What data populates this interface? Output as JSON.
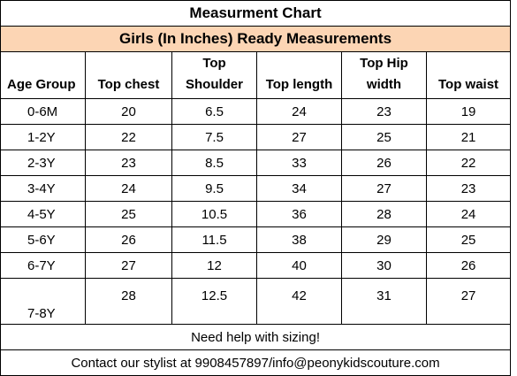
{
  "title": "Measurment Chart",
  "subtitle": "Girls (In Inches) Ready Measurements",
  "headers": [
    [
      "",
      "Age Group"
    ],
    [
      "",
      "Top chest"
    ],
    [
      "Top",
      "Shoulder"
    ],
    [
      "",
      "Top length"
    ],
    [
      "Top Hip",
      "width"
    ],
    [
      "",
      "Top waist"
    ]
  ],
  "rows": [
    [
      "0-6M",
      "20",
      "6.5",
      "24",
      "23",
      "19"
    ],
    [
      "1-2Y",
      "22",
      "7.5",
      "27",
      "25",
      "21"
    ],
    [
      "2-3Y",
      "23",
      "8.5",
      "33",
      "26",
      "22"
    ],
    [
      "3-4Y",
      "24",
      "9.5",
      "34",
      "27",
      "23"
    ],
    [
      "4-5Y",
      "25",
      "10.5",
      "36",
      "28",
      "24"
    ],
    [
      "5-6Y",
      "26",
      "11.5",
      "38",
      "29",
      "25"
    ],
    [
      "6-7Y",
      "27",
      "12",
      "40",
      "30",
      "26"
    ],
    [
      "7-8Y",
      "28",
      "12.5",
      "42",
      "31",
      "27"
    ]
  ],
  "footer_help": "Need help with sizing!",
  "footer_contact": "Contact our stylist at 9908457897/info@peonykidscouture.com",
  "colors": {
    "subtitle_bg": "#fcd5b4",
    "border": "#000000"
  }
}
